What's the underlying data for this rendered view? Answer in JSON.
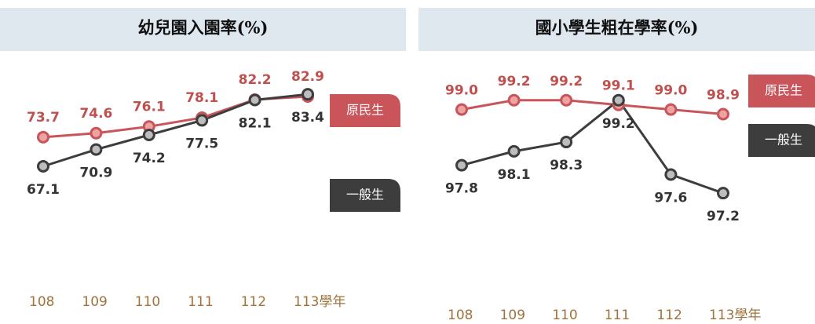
{
  "chart_data": [
    {
      "type": "line",
      "title": "幼兒園入園率(%)",
      "categories": [
        "108",
        "109",
        "110",
        "111",
        "112",
        "113學年"
      ],
      "ylim": [
        60,
        90
      ],
      "series": [
        {
          "name": "原民生",
          "color": "#c9545a",
          "values": [
            73.7,
            74.6,
            76.1,
            78.1,
            82.2,
            82.9
          ],
          "value_labels": [
            "73.7",
            "74.6",
            "76.1",
            "78.1",
            "82.2",
            "82.9"
          ]
        },
        {
          "name": "一般生",
          "color": "#3d3d3d",
          "values": [
            67.1,
            70.9,
            74.2,
            77.5,
            82.1,
            83.4
          ],
          "value_labels": [
            "67.1",
            "70.9",
            "74.2",
            "77.5",
            "82.1",
            "83.4"
          ]
        }
      ]
    },
    {
      "type": "line",
      "title": "國小學生粗在學率(%)",
      "categories": [
        "108",
        "109",
        "110",
        "111",
        "112",
        "113學年"
      ],
      "ylim": [
        97,
        99.5
      ],
      "series": [
        {
          "name": "原民生",
          "color": "#c9545a",
          "values": [
            99.0,
            99.2,
            99.2,
            99.1,
            99.0,
            98.9
          ],
          "value_labels": [
            "99.0",
            "99.2",
            "99.2",
            "99.1",
            "99.0",
            "98.9"
          ]
        },
        {
          "name": "一般生",
          "color": "#3d3d3d",
          "values": [
            97.8,
            98.1,
            98.3,
            99.2,
            97.6,
            97.2
          ],
          "value_labels": [
            "97.8",
            "98.1",
            "98.3",
            "99.2",
            "97.6",
            "97.2"
          ]
        }
      ]
    }
  ]
}
